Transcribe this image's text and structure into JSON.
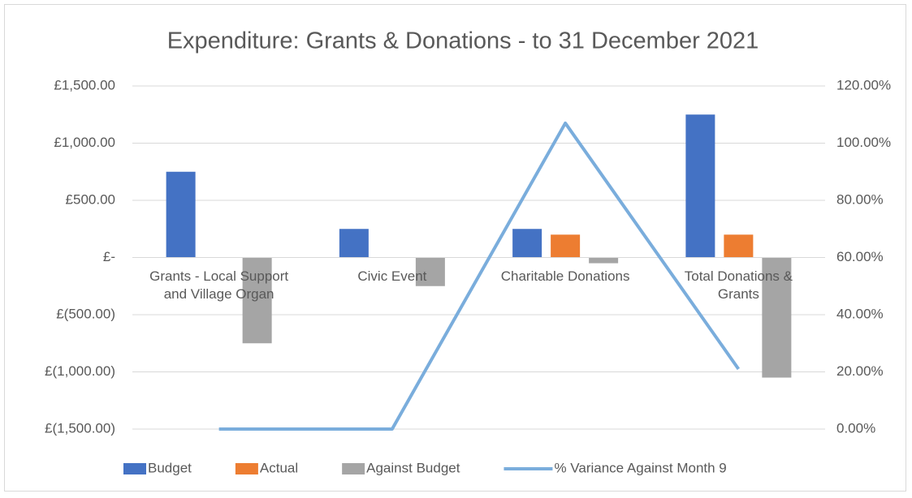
{
  "chart_data": {
    "type": "bar_line",
    "title": "Expenditure: Grants & Donations - to 31 December 2021",
    "categories": [
      "Grants - Local Support and Village Organ",
      "Civic Event",
      "Charitable Donations",
      "Total Donations & Grants"
    ],
    "series": [
      {
        "name": "Budget",
        "type": "bar",
        "color": "#4472c4",
        "values": [
          750,
          250,
          250,
          1250
        ]
      },
      {
        "name": "Actual",
        "type": "bar",
        "color": "#ed7d31",
        "values": [
          0,
          0,
          200,
          200
        ]
      },
      {
        "name": "Against Budget",
        "type": "bar",
        "color": "#a5a5a5",
        "values": [
          -750,
          -250,
          -50,
          -1050
        ]
      },
      {
        "name": "% Variance Against Month 9",
        "type": "line",
        "axis": "y2",
        "color": "#7aaddc",
        "values": [
          0,
          0,
          107,
          21
        ]
      }
    ],
    "ylim": [
      -1500,
      1500
    ],
    "yticks": [
      {
        "value": -1500,
        "label": "£(1,500.00)"
      },
      {
        "value": -1000,
        "label": "£(1,000.00)"
      },
      {
        "value": -500,
        "label": "£(500.00)"
      },
      {
        "value": 0,
        "label": "£-"
      },
      {
        "value": 500,
        "label": "£500.00"
      },
      {
        "value": 1000,
        "label": "£1,000.00"
      },
      {
        "value": 1500,
        "label": "£1,500.00"
      }
    ],
    "y2lim": [
      0,
      120
    ],
    "y2ticks": [
      {
        "value": 0,
        "label": "0.00%"
      },
      {
        "value": 20,
        "label": "20.00%"
      },
      {
        "value": 40,
        "label": "40.00%"
      },
      {
        "value": 60,
        "label": "60.00%"
      },
      {
        "value": 80,
        "label": "80.00%"
      },
      {
        "value": 100,
        "label": "100.00%"
      },
      {
        "value": 120,
        "label": "120.00%"
      }
    ],
    "grid": true,
    "legend": "bottom"
  }
}
